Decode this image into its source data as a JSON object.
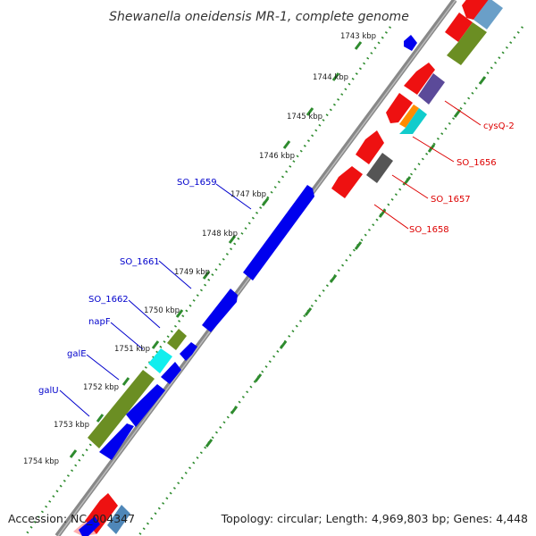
{
  "title": "Shewanella oneidensis MR-1, complete genome",
  "footer": {
    "accession": "Accession: NC_004347",
    "topology": "Topology: circular; Length: 4,969,803 bp; Genes: 4,448"
  },
  "colors": {
    "forward_gene_label": "#0000cc",
    "reverse_gene_label": "#dd0000",
    "backbone": "#888888",
    "tick": "#2e8b2e"
  },
  "ticks": [
    "1743 kbp",
    "1744 kbp",
    "1745 kbp",
    "1746 kbp",
    "1747 kbp",
    "1748 kbp",
    "1749 kbp",
    "1750 kbp",
    "1751 kbp",
    "1752 kbp",
    "1753 kbp",
    "1754 kbp"
  ],
  "gene_labels_forward": [
    "SO_1659",
    "SO_1661",
    "SO_1662",
    "napF",
    "galE",
    "galU"
  ],
  "gene_labels_reverse": [
    "cysQ-2",
    "SO_1656",
    "SO_1657",
    "SO_1658"
  ]
}
